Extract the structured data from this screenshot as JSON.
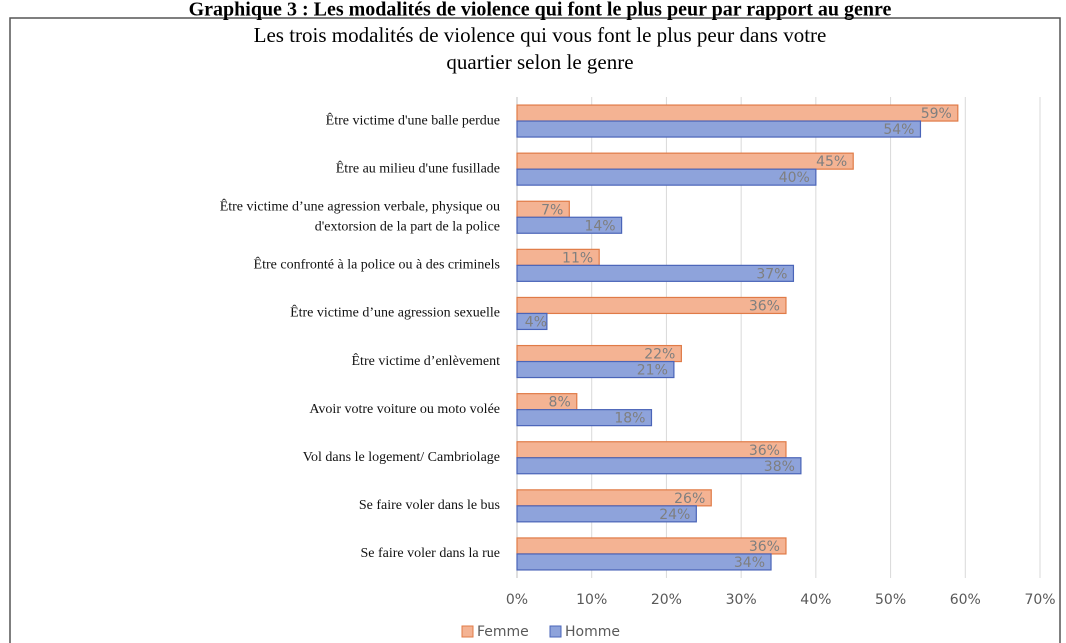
{
  "heading": "Graphique 3 : Les modalités de violence qui font le plus peur par rapport au genre",
  "chart_data": {
    "type": "barh",
    "title": [
      "Les trois modalités de violence qui vous font le plus peur dans votre",
      "quartier selon le genre"
    ],
    "categories": [
      "Être victime d'une balle perdue",
      "Être au milieu d'une fusillade",
      [
        "Être victime d’une agression verbale, physique ou",
        "d'extorsion de la part de la police"
      ],
      "Être confronté à la police ou à des criminels",
      "Être victime d’une agression sexuelle",
      "Être victime d’enlèvement",
      "Avoir votre voiture ou moto volée",
      "Vol dans le logement/ Cambriolage",
      "Se faire voler dans le bus",
      "Se faire voler dans la rue"
    ],
    "series": [
      {
        "name": "Femme",
        "color": "#f4b393",
        "edge": "#e07b47",
        "values": [
          59,
          45,
          7,
          11,
          36,
          22,
          8,
          36,
          26,
          36
        ],
        "value_labels": [
          "59%",
          "45%",
          "7%",
          "11%",
          "36%",
          "22%",
          "8%",
          "36%",
          "26%",
          "36%"
        ]
      },
      {
        "name": "Homme",
        "color": "#8ea3db",
        "edge": "#4a64b8",
        "values": [
          54,
          40,
          14,
          37,
          4,
          21,
          18,
          38,
          24,
          34
        ],
        "value_labels": [
          "54%",
          "40%",
          "14%",
          "37%",
          "4%",
          "21%",
          "18%",
          "38%",
          "24%",
          "34%"
        ]
      }
    ],
    "xlim": [
      0,
      70
    ],
    "xticks": [
      {
        "value": 0,
        "label": "0%"
      },
      {
        "value": 10,
        "label": "10%"
      },
      {
        "value": 20,
        "label": "20%"
      },
      {
        "value": 30,
        "label": "30%"
      },
      {
        "value": 40,
        "label": "40%"
      },
      {
        "value": 50,
        "label": "50%"
      },
      {
        "value": 60,
        "label": "60%"
      },
      {
        "value": 70,
        "label": "70%"
      }
    ],
    "grid": true,
    "legend": "bottom"
  }
}
